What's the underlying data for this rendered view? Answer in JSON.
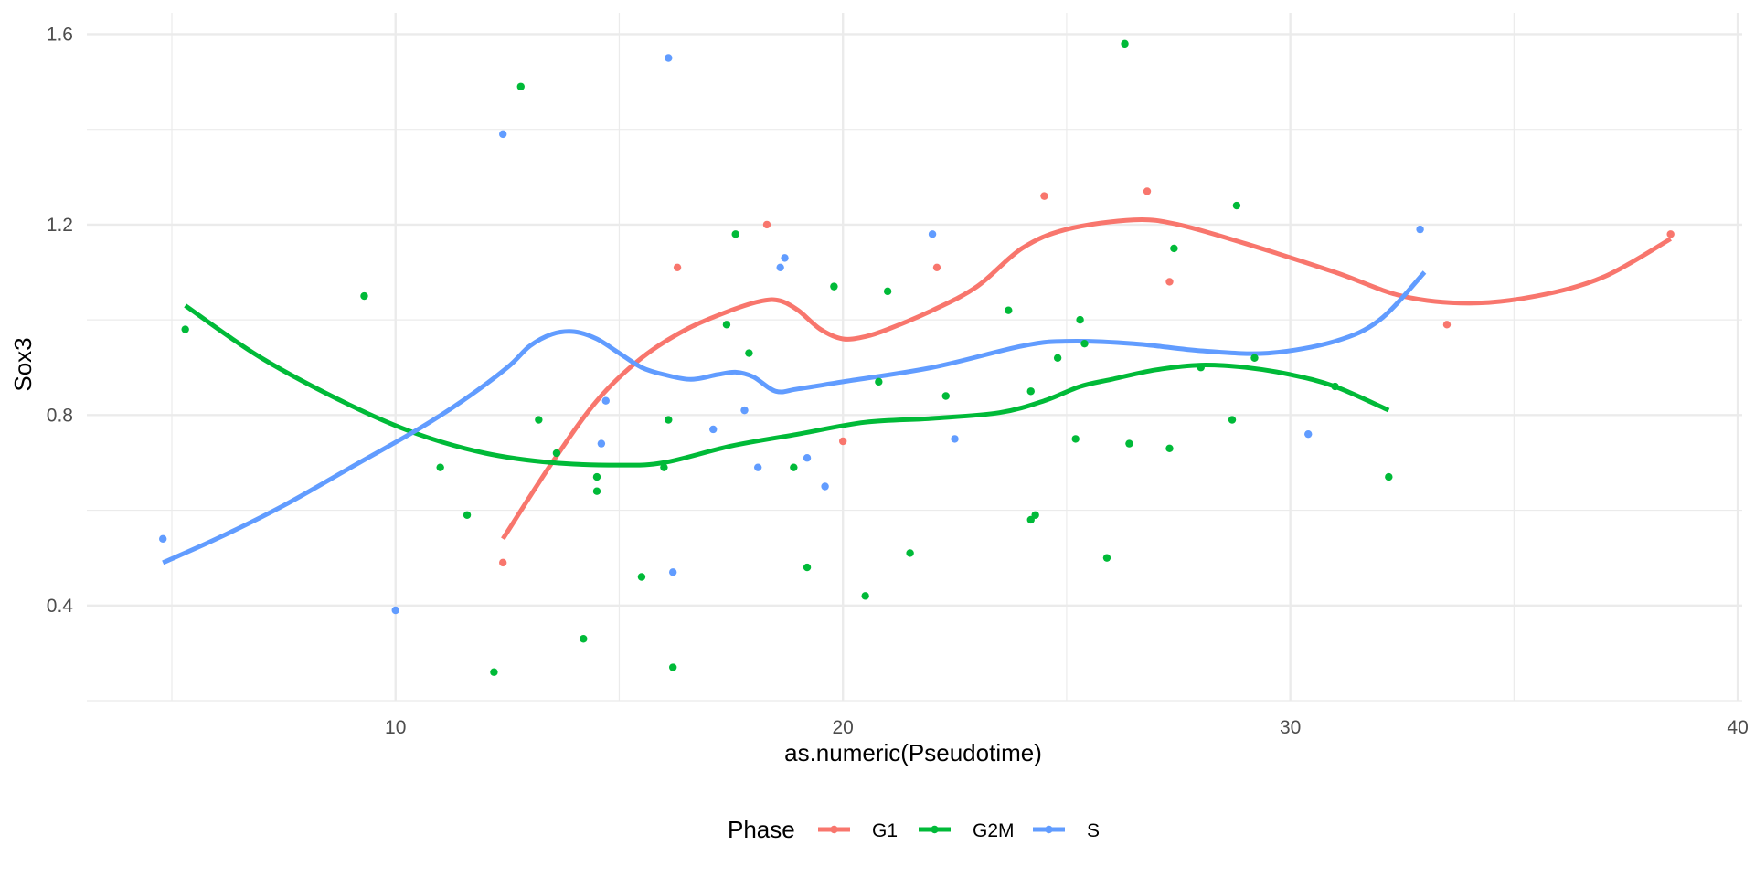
{
  "chart_data": {
    "type": "scatter",
    "title": "",
    "xlabel": "as.numeric(Pseudotime)",
    "ylabel": "Sox3",
    "xlim": [
      3.1,
      40.1
    ],
    "ylim": [
      0.2,
      1.645
    ],
    "x_ticks": [
      10,
      20,
      30,
      40
    ],
    "x_tick_labels": [
      "10",
      "20",
      "30",
      "40"
    ],
    "y_ticks": [
      0.4,
      0.8,
      1.2,
      1.6
    ],
    "y_tick_labels": [
      "0.4",
      "0.8",
      "1.2",
      "1.6"
    ],
    "grid": true,
    "legend": {
      "title": "Phase",
      "position": "bottom"
    },
    "series": [
      {
        "name": "G1",
        "color": "#F8766D",
        "points": [
          [
            12.4,
            0.49
          ],
          [
            16.3,
            1.11
          ],
          [
            18.3,
            1.2
          ],
          [
            20.0,
            0.745
          ],
          [
            22.1,
            1.11
          ],
          [
            24.5,
            1.26
          ],
          [
            26.8,
            1.27
          ],
          [
            27.3,
            1.08
          ],
          [
            33.5,
            0.99
          ],
          [
            38.5,
            1.18
          ]
        ],
        "smooth": [
          [
            12.4,
            0.54
          ],
          [
            13.5,
            0.7
          ],
          [
            14.5,
            0.83
          ],
          [
            15.5,
            0.92
          ],
          [
            16.5,
            0.98
          ],
          [
            17.5,
            1.02
          ],
          [
            18.2,
            1.04
          ],
          [
            18.6,
            1.04
          ],
          [
            19.0,
            1.02
          ],
          [
            19.5,
            0.98
          ],
          [
            20.0,
            0.96
          ],
          [
            20.5,
            0.965
          ],
          [
            21.0,
            0.98
          ],
          [
            22.0,
            1.02
          ],
          [
            23.0,
            1.07
          ],
          [
            24.0,
            1.15
          ],
          [
            25.0,
            1.19
          ],
          [
            26.5,
            1.21
          ],
          [
            27.5,
            1.2
          ],
          [
            29.0,
            1.16
          ],
          [
            31.0,
            1.1
          ],
          [
            32.5,
            1.05
          ],
          [
            34.0,
            1.035
          ],
          [
            35.5,
            1.05
          ],
          [
            37.0,
            1.09
          ],
          [
            38.5,
            1.17
          ]
        ]
      },
      {
        "name": "G2M",
        "color": "#00BA38",
        "points": [
          [
            5.3,
            0.98
          ],
          [
            9.3,
            1.05
          ],
          [
            11.0,
            0.69
          ],
          [
            11.6,
            0.59
          ],
          [
            12.2,
            0.26
          ],
          [
            12.8,
            1.49
          ],
          [
            13.2,
            0.79
          ],
          [
            13.6,
            0.72
          ],
          [
            14.2,
            0.33
          ],
          [
            14.5,
            0.64
          ],
          [
            14.5,
            0.67
          ],
          [
            15.5,
            0.46
          ],
          [
            16.0,
            0.69
          ],
          [
            16.1,
            0.79
          ],
          [
            16.2,
            0.27
          ],
          [
            17.4,
            0.99
          ],
          [
            17.6,
            1.18
          ],
          [
            17.9,
            0.93
          ],
          [
            18.9,
            0.69
          ],
          [
            19.2,
            0.48
          ],
          [
            19.8,
            1.07
          ],
          [
            20.5,
            0.42
          ],
          [
            20.8,
            0.87
          ],
          [
            21.0,
            1.06
          ],
          [
            21.5,
            0.51
          ],
          [
            22.3,
            0.84
          ],
          [
            23.7,
            1.02
          ],
          [
            24.2,
            0.85
          ],
          [
            24.2,
            0.58
          ],
          [
            24.3,
            0.59
          ],
          [
            24.8,
            0.92
          ],
          [
            25.2,
            0.75
          ],
          [
            25.3,
            1.0
          ],
          [
            25.4,
            0.95
          ],
          [
            25.9,
            0.5
          ],
          [
            26.3,
            1.58
          ],
          [
            26.4,
            0.74
          ],
          [
            27.3,
            0.73
          ],
          [
            27.4,
            1.15
          ],
          [
            28.0,
            0.9
          ],
          [
            28.7,
            0.79
          ],
          [
            28.8,
            1.24
          ],
          [
            29.2,
            0.92
          ],
          [
            31.0,
            0.86
          ],
          [
            32.2,
            0.67
          ]
        ],
        "smooth": [
          [
            5.3,
            1.03
          ],
          [
            7.0,
            0.92
          ],
          [
            9.0,
            0.82
          ],
          [
            10.5,
            0.76
          ],
          [
            12.0,
            0.72
          ],
          [
            13.5,
            0.7
          ],
          [
            15.0,
            0.695
          ],
          [
            16.0,
            0.7
          ],
          [
            17.5,
            0.735
          ],
          [
            19.0,
            0.76
          ],
          [
            20.5,
            0.785
          ],
          [
            22.0,
            0.793
          ],
          [
            23.5,
            0.805
          ],
          [
            24.5,
            0.83
          ],
          [
            25.3,
            0.86
          ],
          [
            26.0,
            0.875
          ],
          [
            27.0,
            0.895
          ],
          [
            28.0,
            0.905
          ],
          [
            29.0,
            0.9
          ],
          [
            30.0,
            0.885
          ],
          [
            31.0,
            0.86
          ],
          [
            32.2,
            0.81
          ]
        ]
      },
      {
        "name": "S",
        "color": "#619CFF",
        "points": [
          [
            4.8,
            0.54
          ],
          [
            10.0,
            0.39
          ],
          [
            12.4,
            1.39
          ],
          [
            14.6,
            0.74
          ],
          [
            14.7,
            0.83
          ],
          [
            16.1,
            1.55
          ],
          [
            16.2,
            0.47
          ],
          [
            17.1,
            0.77
          ],
          [
            17.8,
            0.81
          ],
          [
            18.1,
            0.69
          ],
          [
            18.6,
            1.11
          ],
          [
            18.7,
            1.13
          ],
          [
            19.2,
            0.71
          ],
          [
            19.6,
            0.65
          ],
          [
            22.0,
            1.18
          ],
          [
            22.5,
            0.75
          ],
          [
            30.4,
            0.76
          ],
          [
            32.9,
            1.19
          ]
        ],
        "smooth": [
          [
            4.8,
            0.49
          ],
          [
            6.0,
            0.54
          ],
          [
            7.5,
            0.61
          ],
          [
            9.0,
            0.69
          ],
          [
            10.5,
            0.77
          ],
          [
            11.5,
            0.83
          ],
          [
            12.5,
            0.9
          ],
          [
            13.0,
            0.945
          ],
          [
            13.5,
            0.97
          ],
          [
            14.0,
            0.975
          ],
          [
            14.5,
            0.96
          ],
          [
            15.0,
            0.93
          ],
          [
            15.5,
            0.9
          ],
          [
            16.0,
            0.885
          ],
          [
            16.6,
            0.875
          ],
          [
            17.2,
            0.885
          ],
          [
            17.6,
            0.89
          ],
          [
            18.0,
            0.88
          ],
          [
            18.5,
            0.85
          ],
          [
            19.0,
            0.855
          ],
          [
            20.0,
            0.87
          ],
          [
            22.0,
            0.9
          ],
          [
            24.0,
            0.945
          ],
          [
            25.0,
            0.955
          ],
          [
            26.5,
            0.95
          ],
          [
            28.0,
            0.935
          ],
          [
            29.5,
            0.93
          ],
          [
            31.0,
            0.955
          ],
          [
            32.0,
            1.0
          ],
          [
            33.0,
            1.1
          ]
        ]
      }
    ]
  }
}
